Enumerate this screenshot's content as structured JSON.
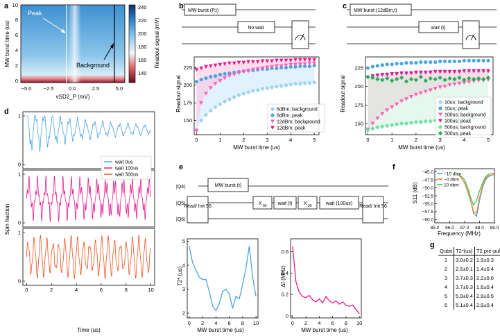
{
  "panels": {
    "a": {
      "label": "a",
      "ylabel": "MW burst time (us)",
      "xlabel": "vSD2_P (mV)",
      "xticks": [
        "−5.0",
        "−2.5",
        "0.0",
        "2.5",
        "5.0"
      ],
      "yticks": [
        "0",
        "2",
        "4",
        "6",
        "8",
        "10"
      ],
      "colorbar_label": "Readout signal (mV)",
      "colorbar_ticks": [
        "240",
        "220",
        "200",
        "180",
        "160",
        "140"
      ],
      "annot_peak": "Peak",
      "annot_background": "Background"
    },
    "b": {
      "label": "b",
      "gate1": "MW burst (P,t)",
      "gate2": "No wait",
      "ylabel": "Readout signal",
      "xlabel": "MW burst time (us)",
      "xticks": [
        "0",
        "1",
        "2",
        "3",
        "4",
        "5"
      ],
      "yticks": [
        "150",
        "175",
        "200",
        "225"
      ],
      "legend": [
        "6dBm; background",
        "6dBm; peak",
        "12dBm; background",
        "12dBm; peak"
      ]
    },
    "c": {
      "label": "c",
      "gate1": "MW burst (12dBm,t)",
      "gate2": "wait (t)",
      "ylabel": "Readout signal",
      "xlabel": "MW burst time (us)",
      "xticks": [
        "0",
        "1",
        "2",
        "3",
        "4",
        "5"
      ],
      "yticks": [
        "150",
        "175",
        "200",
        "225"
      ],
      "legend": [
        "10us; background",
        "10us; peak",
        "100us; background",
        "100us; peak",
        "500us; background",
        "500us; peak"
      ]
    },
    "d": {
      "label": "d",
      "ylabel": "Spin fraction",
      "xlabel": "Time (us)",
      "xticks": [
        "0",
        "2",
        "4",
        "6",
        "8",
        "10"
      ],
      "yticks": [
        "0",
        "1"
      ],
      "legend": [
        "wait 0us",
        "wait 100us",
        "wait 500us"
      ]
    },
    "e": {
      "label": "e",
      "q4": "|Q4⟩",
      "q5": "|Q5⟩",
      "q6": "|Q6⟩",
      "readout": "Read/ Init 56",
      "mwburst": "MW burst (t)",
      "x90": "X",
      "x90sub": "90",
      "wait_t": "wait (t)",
      "wait_100": "wait (100us)",
      "left_ylabel": "T2* (us)",
      "right_ylabel": "Δf (MHz)",
      "xlabel": "MW burst time (us)",
      "xticks": [
        "0",
        "2",
        "4",
        "6",
        "8",
        "10"
      ],
      "left_yticks": [
        "2",
        "3",
        "4",
        "5"
      ],
      "right_yticks": [
        "0",
        "0.2",
        "0.4",
        "0.6"
      ]
    },
    "f": {
      "label": "f",
      "ylabel": "S11 (dB)",
      "xlabel": "Frequency (MHz)",
      "xticks": [
        "85.0",
        "86.0",
        "87.0",
        "88.0",
        "89.0"
      ],
      "yticks": [
        "−45.0",
        "−47.5",
        "−50.0",
        "−52.5",
        "−55.0",
        "−57.5",
        "−60.0"
      ],
      "legend": [
        "−10 dbm",
        "−0 dbm",
        "10 dbm"
      ]
    },
    "g": {
      "label": "g",
      "headers": [
        "Qubit",
        "T2*(us)",
        "T2,pre-pulse*(us)"
      ],
      "rows": [
        [
          "1",
          "3.0±0.2",
          "1.9±0.3"
        ],
        [
          "2",
          "2.5±0.1",
          "1.4±0.4"
        ],
        [
          "3",
          "3.7±0.3",
          "2.2±0.6"
        ],
        [
          "4",
          "3.7±0.3",
          "1.6±0.4"
        ],
        [
          "5",
          "5.9±0.4",
          "2.9±0.5"
        ],
        [
          "6",
          "5.1±0.4",
          "2.9±0.4"
        ]
      ]
    }
  },
  "chart_data": [
    {
      "panel": "b",
      "type": "scatter",
      "xlim": [
        -0.1,
        5.2
      ],
      "ylim": [
        130,
        240
      ],
      "x": [
        0,
        0.2,
        0.4,
        0.6,
        0.8,
        1.0,
        1.2,
        1.4,
        1.6,
        1.8,
        2.0,
        2.2,
        2.4,
        2.6,
        2.8,
        3.0,
        3.2,
        3.4,
        3.6,
        3.8,
        4.0,
        4.2,
        4.4,
        4.6,
        4.8,
        5.0
      ],
      "series": [
        {
          "name": "6dBm; background",
          "color": "#9fd2f3",
          "values": [
            137,
            150,
            158,
            164,
            169,
            173,
            177,
            180,
            183,
            186,
            188,
            190,
            192,
            193,
            195,
            196,
            197,
            198,
            199,
            200,
            201,
            202,
            202,
            203,
            203,
            204
          ]
        },
        {
          "name": "6dBm; peak",
          "color": "#4aa3e4",
          "values": [
            205,
            208,
            210,
            212,
            213,
            215,
            216,
            217,
            218,
            219,
            220,
            221,
            221,
            222,
            223,
            223,
            224,
            224,
            225,
            225,
            226,
            226,
            227,
            227,
            227,
            228
          ]
        },
        {
          "name": "12dBm; background",
          "color": "#ff5fb4",
          "values": [
            135,
            175,
            188,
            196,
            202,
            206,
            210,
            213,
            215,
            217,
            219,
            220,
            222,
            223,
            224,
            225,
            226,
            227,
            227,
            228,
            229,
            229,
            230,
            230,
            231,
            231
          ]
        },
        {
          "name": "12dBm; peak",
          "color": "#e8198a",
          "values": [
            222,
            224,
            226,
            227,
            228,
            229,
            230,
            231,
            231,
            232,
            232,
            233,
            233,
            233,
            234,
            234,
            234,
            235,
            235,
            235,
            235,
            236,
            236,
            236,
            236,
            236
          ]
        }
      ]
    },
    {
      "panel": "c",
      "type": "scatter",
      "xlim": [
        -0.1,
        5.2
      ],
      "ylim": [
        135,
        240
      ],
      "x": [
        0,
        0.2,
        0.4,
        0.6,
        0.8,
        1.0,
        1.2,
        1.4,
        1.6,
        1.8,
        2.0,
        2.2,
        2.4,
        2.6,
        2.8,
        3.0,
        3.2,
        3.4,
        3.6,
        3.8,
        4.0,
        4.2,
        4.4,
        4.6,
        4.8,
        5.0
      ],
      "series": [
        {
          "name": "10us; background",
          "color": "#9fd2f3",
          "values": [
            213,
            215,
            216,
            216,
            217,
            217,
            218,
            218,
            218,
            219,
            219,
            219,
            219,
            220,
            220,
            220,
            220,
            220,
            220,
            221,
            221,
            221,
            221,
            221,
            221,
            221
          ]
        },
        {
          "name": "10us; peak",
          "color": "#4aa3e4",
          "values": [
            225,
            227,
            228,
            229,
            230,
            230,
            231,
            231,
            232,
            232,
            232,
            233,
            233,
            233,
            233,
            234,
            234,
            234,
            234,
            234,
            235,
            235,
            235,
            235,
            235,
            235
          ]
        },
        {
          "name": "100us; background",
          "color": "#ff5fb4",
          "values": [
            142,
            150,
            157,
            163,
            168,
            172,
            176,
            180,
            183,
            186,
            189,
            191,
            193,
            195,
            197,
            199,
            200,
            202,
            203,
            204,
            205,
            206,
            207,
            208,
            208,
            209
          ]
        },
        {
          "name": "100us; peak",
          "color": "#e8198a",
          "values": [
            212,
            214,
            215,
            216,
            216,
            217,
            217,
            218,
            218,
            218,
            219,
            219,
            219,
            219,
            220,
            220,
            220,
            220,
            220,
            220,
            221,
            221,
            221,
            221,
            221,
            221
          ]
        },
        {
          "name": "500us; background",
          "color": "#6ee0a0",
          "values": [
            141,
            143,
            145,
            146,
            147,
            148,
            149,
            150,
            150,
            151,
            152,
            152,
            153,
            153,
            154,
            154,
            155,
            155,
            156,
            156,
            156,
            157,
            157,
            157,
            158,
            158
          ]
        },
        {
          "name": "500us; peak",
          "color": "#27ae60",
          "values": [
            213,
            212,
            210,
            209,
            211,
            208,
            210,
            212,
            207,
            210,
            209,
            213,
            208,
            211,
            210,
            212,
            209,
            211,
            210,
            212,
            209,
            211,
            210,
            211,
            210,
            212
          ]
        }
      ]
    },
    {
      "panel": "e-left",
      "type": "line",
      "xlim": [
        -0.3,
        10.3
      ],
      "ylim": [
        1.8,
        5.1
      ],
      "x": [
        0,
        0.5,
        1,
        1.5,
        2,
        2.5,
        3,
        3.5,
        4,
        4.5,
        5,
        5.5,
        6,
        6.5,
        7,
        7.5,
        8,
        8.5,
        9,
        9.5,
        10
      ],
      "values": [
        4.8,
        4.1,
        3.8,
        3.5,
        3.4,
        3.4,
        2.9,
        2.3,
        2.1,
        2.4,
        2.9,
        3.0,
        2.8,
        2.2,
        2.7,
        2.6,
        3.2,
        3.9,
        4.8,
        3.5,
        2.7
      ],
      "color": "#4aa3e4"
    },
    {
      "panel": "e-right",
      "type": "line",
      "xlim": [
        -0.3,
        10.3
      ],
      "ylim": [
        -0.02,
        0.72
      ],
      "x": [
        0,
        0.5,
        1,
        1.5,
        2,
        2.5,
        3,
        3.5,
        4,
        4.5,
        5,
        5.5,
        6,
        6.5,
        7,
        7.5,
        8,
        8.5,
        9,
        9.5,
        10
      ],
      "values": [
        0.65,
        0.32,
        0.22,
        0.18,
        0.17,
        0.19,
        0.15,
        0.13,
        0.16,
        0.12,
        0.18,
        0.14,
        0.12,
        0.14,
        0.11,
        0.13,
        0.1,
        0.09,
        0.1,
        0.06,
        0.02
      ],
      "color": "#e8198a"
    },
    {
      "panel": "f",
      "type": "line",
      "xlim": [
        85,
        89
      ],
      "ylim": [
        -61,
        -44
      ],
      "series": [
        {
          "name": "−10 dbm",
          "color": "#4aa3e4",
          "x": [
            86.6,
            86.8,
            87.0,
            87.2,
            87.4,
            87.6,
            87.8,
            88.0,
            88.2,
            88.4,
            88.6,
            88.8,
            89.0
          ],
          "values": [
            -46,
            -47,
            -48.5,
            -51,
            -54,
            -58,
            -59,
            -54,
            -50,
            -47.5,
            -46.5,
            -46,
            -45.8
          ]
        },
        {
          "name": "−0 dbm",
          "color": "#ff7f27",
          "x": [
            86.6,
            86.8,
            87.0,
            87.2,
            87.4,
            87.6,
            87.8,
            88.0,
            88.2,
            88.4,
            88.6,
            88.8,
            89.0
          ],
          "values": [
            -46,
            -47,
            -48.5,
            -51,
            -54,
            -57.5,
            -58,
            -53,
            -49.5,
            -47,
            -46.2,
            -46,
            -45.8
          ]
        },
        {
          "name": "10 dbm",
          "color": "#3cc15a",
          "x": [
            86.6,
            86.8,
            87.0,
            87.2,
            87.4,
            87.6,
            87.8,
            88.0,
            88.2,
            88.4,
            88.6,
            88.8,
            89.0
          ],
          "values": [
            -46,
            -46.5,
            -47.5,
            -50,
            -53,
            -55.5,
            -54,
            -51,
            -48.5,
            -46.5,
            -45.8,
            -45.5,
            -45.5
          ]
        }
      ]
    }
  ]
}
